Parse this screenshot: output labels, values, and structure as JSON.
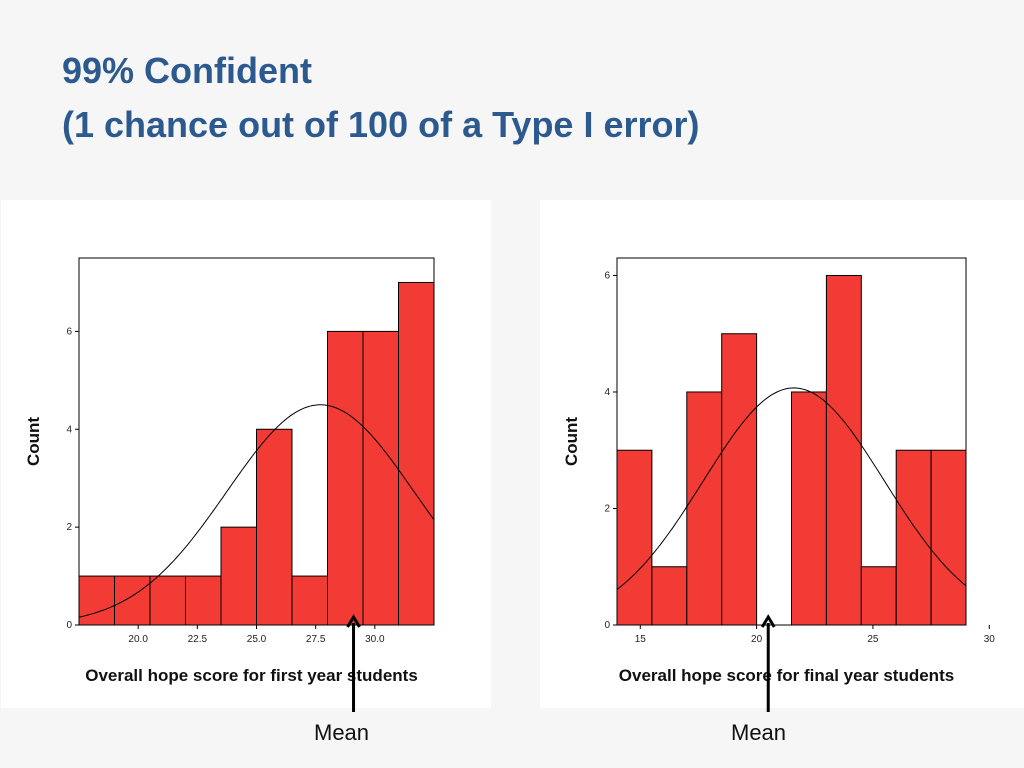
{
  "slide": {
    "title_line1": "99% Confident",
    "title_line2": "(1 chance out of 100 of a Type I error)"
  },
  "colors": {
    "title": "#2d5a8e",
    "bar_fill": "#f23b35",
    "bar_stroke": "#000000",
    "background": "#f6f6f7"
  },
  "chart_data": [
    {
      "type": "bar",
      "xlabel": "Overall hope score for first year students",
      "ylabel": "Count",
      "bins": [
        {
          "x0": 17.5,
          "x1": 19.0,
          "count": 1
        },
        {
          "x0": 19.0,
          "x1": 20.5,
          "count": 1
        },
        {
          "x0": 20.5,
          "x1": 22.0,
          "count": 1
        },
        {
          "x0": 22.0,
          "x1": 23.5,
          "count": 1
        },
        {
          "x0": 23.5,
          "x1": 25.0,
          "count": 2
        },
        {
          "x0": 25.0,
          "x1": 26.5,
          "count": 4
        },
        {
          "x0": 26.5,
          "x1": 28.0,
          "count": 1
        },
        {
          "x0": 28.0,
          "x1": 29.5,
          "count": 6
        },
        {
          "x0": 29.5,
          "x1": 31.0,
          "count": 6
        },
        {
          "x0": 31.0,
          "x1": 32.5,
          "count": 7
        }
      ],
      "xlim": [
        17.5,
        32.5
      ],
      "ylim": [
        0,
        7.5
      ],
      "xticks": [
        20.0,
        22.5,
        25.0,
        27.5,
        30.0
      ],
      "xtick_labels": [
        "20.0",
        "22.5",
        "25.0",
        "27.5",
        "30.0"
      ],
      "yticks": [
        0,
        2,
        4,
        6
      ],
      "ytick_labels": [
        "0",
        "2",
        "4",
        "6"
      ],
      "normal_curve": {
        "mean": 27.7,
        "sd": 3.95,
        "peak": 4.5
      },
      "mean_marker": 29.1,
      "mean_label": "Mean"
    },
    {
      "type": "bar",
      "xlabel": "Overall hope score for final year students",
      "ylabel": "Count",
      "bins": [
        {
          "x0": 14.0,
          "x1": 15.5,
          "count": 3
        },
        {
          "x0": 15.5,
          "x1": 17.0,
          "count": 1
        },
        {
          "x0": 17.0,
          "x1": 18.5,
          "count": 4
        },
        {
          "x0": 18.5,
          "x1": 20.0,
          "count": 5
        },
        {
          "x0": 20.0,
          "x1": 21.5,
          "count": 0
        },
        {
          "x0": 21.5,
          "x1": 23.0,
          "count": 4
        },
        {
          "x0": 23.0,
          "x1": 24.5,
          "count": 6
        },
        {
          "x0": 24.5,
          "x1": 26.0,
          "count": 1
        },
        {
          "x0": 26.0,
          "x1": 27.5,
          "count": 3
        },
        {
          "x0": 27.5,
          "x1": 29.0,
          "count": 3
        }
      ],
      "xlim": [
        14.0,
        29.0
      ],
      "ylim": [
        0,
        6.3
      ],
      "xticks": [
        15,
        20,
        25,
        30
      ],
      "xtick_labels": [
        "15",
        "20",
        "25",
        "30"
      ],
      "yticks": [
        0,
        2,
        4,
        6
      ],
      "ytick_labels": [
        "0",
        "2",
        "4",
        "6"
      ],
      "normal_curve": {
        "mean": 21.6,
        "sd": 3.9,
        "peak": 4.07
      },
      "mean_marker": 20.5,
      "mean_label": "Mean"
    }
  ]
}
